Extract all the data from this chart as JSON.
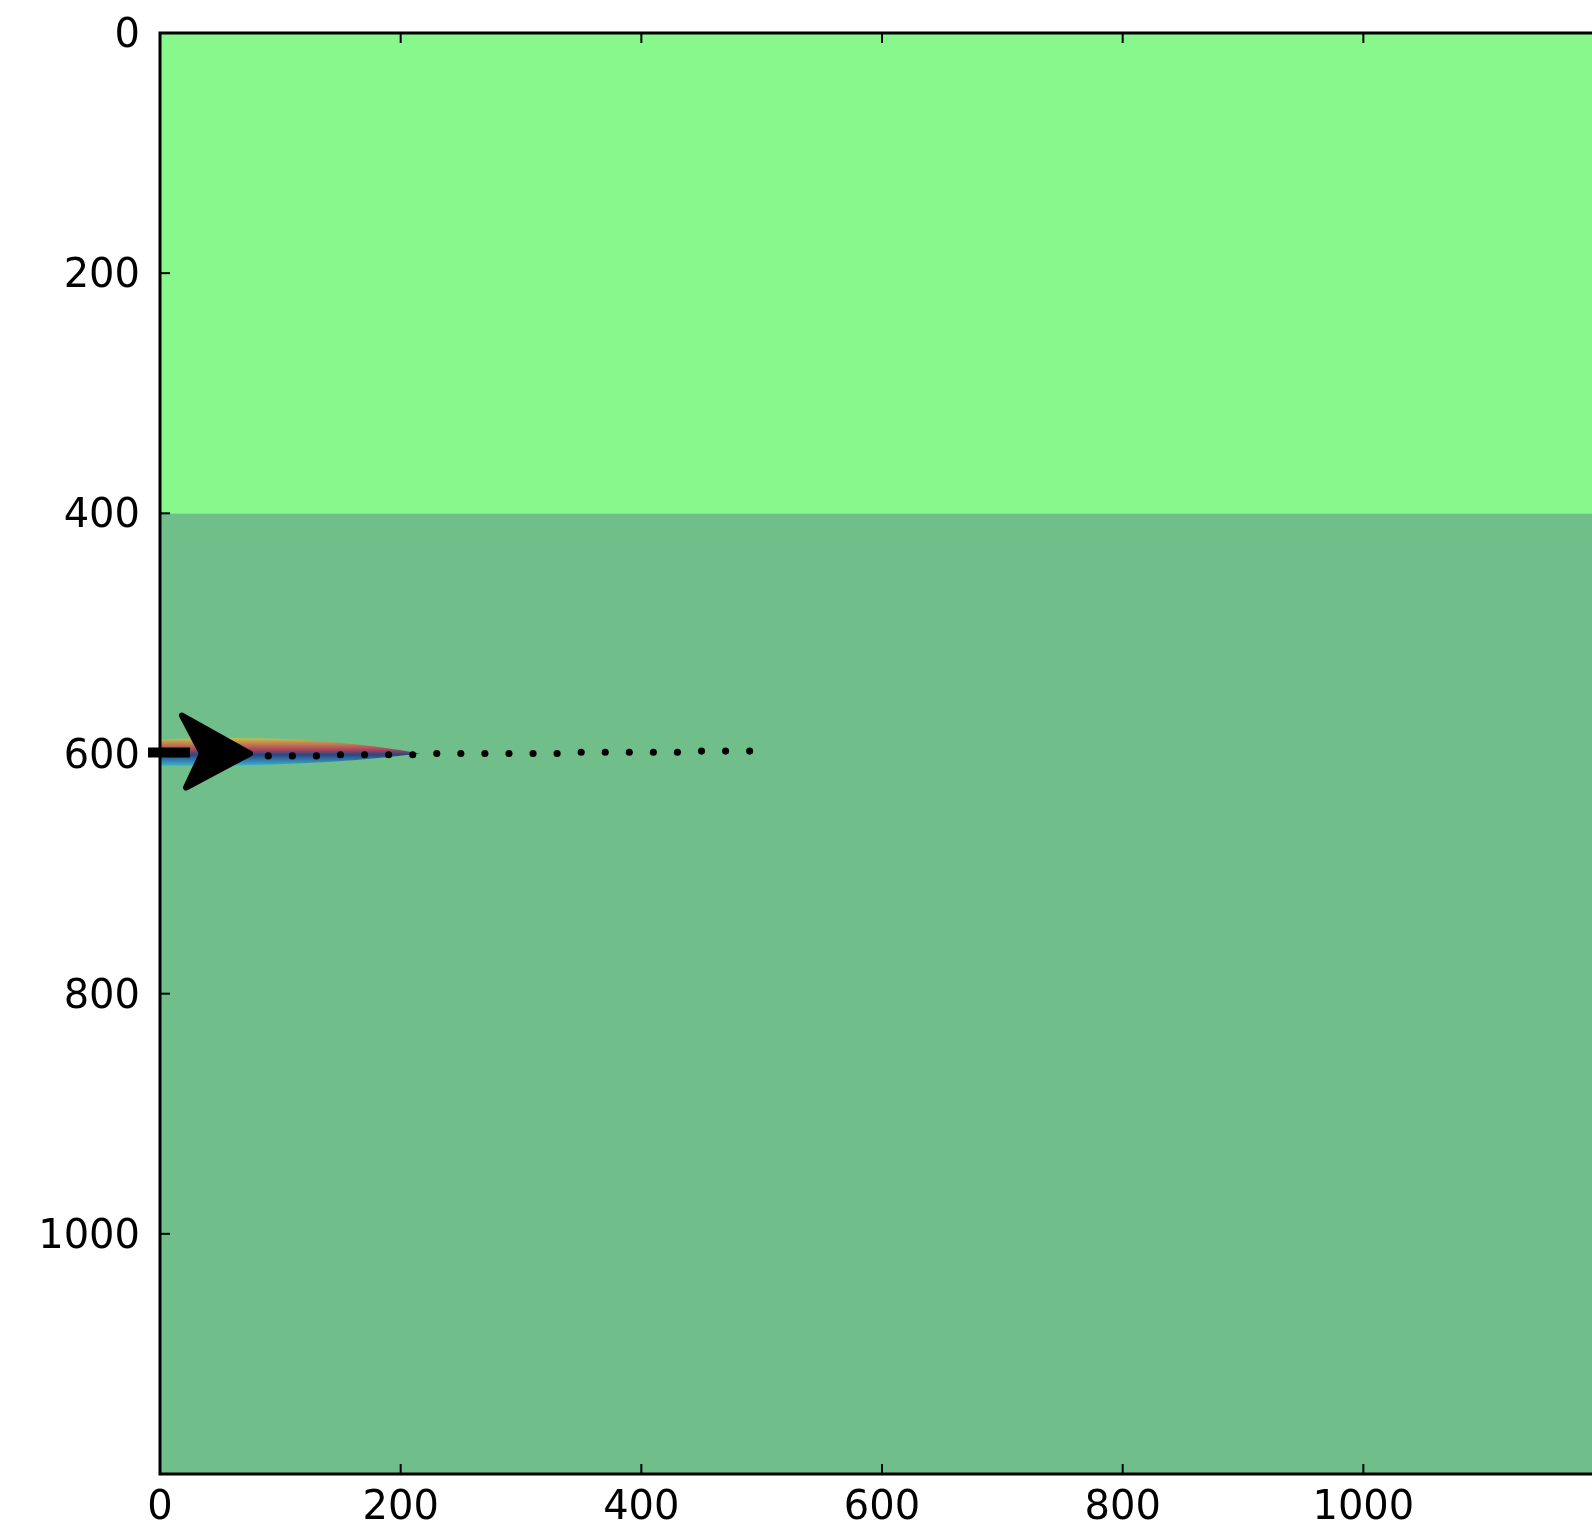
{
  "chart_data": {
    "type": "scatter",
    "x": [
      90,
      110,
      130,
      150,
      170,
      190,
      210,
      230,
      250,
      270,
      290,
      310,
      330,
      350,
      370,
      390,
      410,
      430,
      450,
      470,
      490
    ],
    "series": [
      {
        "color": "#000000",
        "values": [
          602,
          602,
          602,
          601,
          601,
          601,
          601,
          600,
          600,
          600,
          600,
          600,
          600,
          599,
          599,
          599,
          599,
          599,
          598,
          598,
          598
        ]
      }
    ],
    "marker": "circle",
    "xlim": [
      0,
      1190
    ],
    "ylim": [
      1200,
      0
    ],
    "xticks": [
      0,
      200,
      400,
      600,
      800,
      1000
    ],
    "yticks": [
      0,
      200,
      400,
      600,
      800,
      1000
    ],
    "bands": [
      {
        "axis": "y",
        "from": 0,
        "to": 400,
        "color": "#88f88c"
      },
      {
        "axis": "y",
        "from": 400,
        "to": 1200,
        "color": "#70bf8a"
      }
    ]
  }
}
